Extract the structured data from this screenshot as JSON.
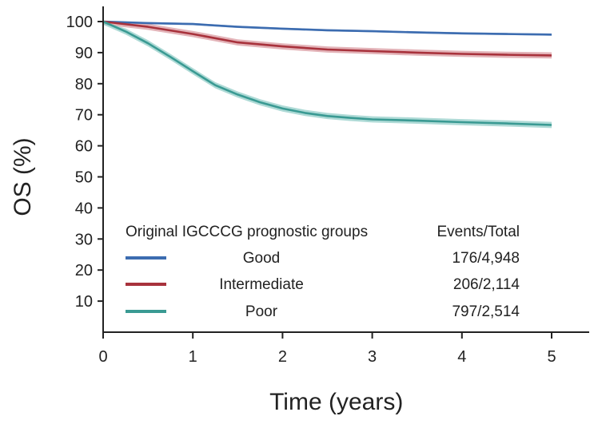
{
  "chart_data": {
    "type": "line",
    "title": "",
    "xlabel": "Time (years)",
    "ylabel": "OS (%)",
    "xlim": [
      0,
      5.4
    ],
    "ylim": [
      0,
      100
    ],
    "x_ticks": [
      0,
      1,
      2,
      3,
      4,
      5
    ],
    "y_ticks": [
      10,
      20,
      30,
      40,
      50,
      60,
      70,
      80,
      90,
      100
    ],
    "grid": false,
    "legend": {
      "placement": "bottom-right",
      "title": "Original IGCCCG prognostic groups",
      "column_header": "Events/Total"
    },
    "series": [
      {
        "name": "Good",
        "events_total": "176/4,948",
        "color": "#3c6cb0",
        "band_color": "#8fb0d8",
        "x": [
          0,
          0.5,
          1,
          1.5,
          2,
          2.5,
          3,
          3.5,
          4,
          4.5,
          5
        ],
        "y": [
          100,
          99.5,
          99.2,
          98.3,
          97.7,
          97.2,
          96.9,
          96.5,
          96.2,
          96.0,
          95.8
        ],
        "ci_halfwidth": 0.35
      },
      {
        "name": "Intermediate",
        "events_total": "206/2,114",
        "color": "#a8323c",
        "band_color": "#d99aa0",
        "x": [
          0,
          0.5,
          1,
          1.5,
          2,
          2.5,
          3,
          3.5,
          4,
          4.5,
          5
        ],
        "y": [
          100,
          98.3,
          96.0,
          93.3,
          92.0,
          91.0,
          90.5,
          90.0,
          89.6,
          89.3,
          89.1
        ],
        "ci_halfwidth": 1.0
      },
      {
        "name": "Poor",
        "events_total": "797/2,514",
        "color": "#3a9a93",
        "band_color": "#93cdc8",
        "x": [
          0,
          0.25,
          0.5,
          0.75,
          1,
          1.25,
          1.5,
          1.75,
          2,
          2.25,
          2.5,
          2.75,
          3,
          3.5,
          4,
          4.5,
          5
        ],
        "y": [
          100,
          96.8,
          93.0,
          88.6,
          84.0,
          79.5,
          76.5,
          74.0,
          72.0,
          70.6,
          69.6,
          69.0,
          68.5,
          68.1,
          67.6,
          67.2,
          66.7
        ],
        "ci_halfwidth": 1.0
      }
    ]
  }
}
